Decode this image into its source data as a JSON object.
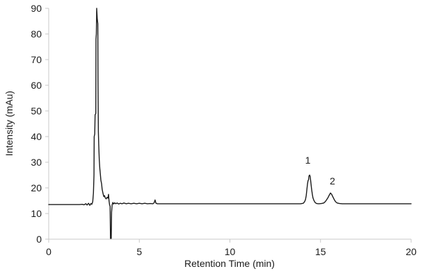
{
  "chart_data": {
    "type": "line",
    "title": "",
    "xlabel": "Retention Time (min)",
    "ylabel": "Intensity (mAu)",
    "xlim": [
      0,
      20
    ],
    "ylim": [
      0,
      90
    ],
    "xticks": [
      0,
      5,
      10,
      15,
      20
    ],
    "yticks": [
      0,
      10,
      20,
      30,
      40,
      50,
      60,
      70,
      80,
      90
    ],
    "grid": false,
    "legend": false,
    "colors": {
      "trace": "#1a1a1a",
      "axis": "#c8c8c8",
      "text": "#1a1a1a"
    },
    "baseline_mau": 13.5,
    "peaks": [
      {
        "label": "1",
        "retention_time_min": 14.4,
        "apex_mau": 25
      },
      {
        "label": "2",
        "retention_time_min": 15.6,
        "apex_mau": 18
      }
    ],
    "annotations": [
      {
        "label": "1",
        "t": 14.3,
        "v": 30.8
      },
      {
        "label": "2",
        "t": 15.66,
        "v": 22.7
      }
    ],
    "series": [
      {
        "name": "chromatogram",
        "points": [
          [
            0,
            13.5
          ],
          [
            0.6,
            13.5
          ],
          [
            1.2,
            13.5
          ],
          [
            1.7,
            13.5
          ],
          [
            1.85,
            13.6
          ],
          [
            1.95,
            13.4
          ],
          [
            2.05,
            13.8
          ],
          [
            2.12,
            13.3
          ],
          [
            2.2,
            14.0
          ],
          [
            2.27,
            13.2
          ],
          [
            2.33,
            13.9
          ],
          [
            2.38,
            13.6
          ],
          [
            2.43,
            14.6
          ],
          [
            2.47,
            18.0
          ],
          [
            2.5,
            25.0
          ],
          [
            2.51,
            40.0
          ],
          [
            2.54,
            41.0
          ],
          [
            2.56,
            48.5
          ],
          [
            2.6,
            49.0
          ],
          [
            2.61,
            78.0
          ],
          [
            2.63,
            80.0
          ],
          [
            2.65,
            90.0
          ],
          [
            2.68,
            86.0
          ],
          [
            2.71,
            84.0
          ],
          [
            2.72,
            62.0
          ],
          [
            2.74,
            42.0
          ],
          [
            2.76,
            37.0
          ],
          [
            2.79,
            31.0
          ],
          [
            2.82,
            27.5
          ],
          [
            2.85,
            25.5
          ],
          [
            2.88,
            23.0
          ],
          [
            2.92,
            21.5
          ],
          [
            2.95,
            19.5
          ],
          [
            3.0,
            17.8
          ],
          [
            3.04,
            16.6
          ],
          [
            3.08,
            17.0
          ],
          [
            3.12,
            16.1
          ],
          [
            3.17,
            15.7
          ],
          [
            3.22,
            16.3
          ],
          [
            3.27,
            16.0
          ],
          [
            3.3,
            17.5
          ],
          [
            3.33,
            15.0
          ],
          [
            3.36,
            13.4
          ],
          [
            3.39,
            12.8
          ],
          [
            3.41,
            0.3
          ],
          [
            3.45,
            0.3
          ],
          [
            3.47,
            10.5
          ],
          [
            3.5,
            13.4
          ],
          [
            3.54,
            14.3
          ],
          [
            3.58,
            13.7
          ],
          [
            3.64,
            14.2
          ],
          [
            3.7,
            13.8
          ],
          [
            3.78,
            14.1
          ],
          [
            3.86,
            13.7
          ],
          [
            3.95,
            14.0
          ],
          [
            4.05,
            13.8
          ],
          [
            4.15,
            14.1
          ],
          [
            4.28,
            13.8
          ],
          [
            4.4,
            14.0
          ],
          [
            4.55,
            13.8
          ],
          [
            4.7,
            14.0
          ],
          [
            4.85,
            13.8
          ],
          [
            5.0,
            14.0
          ],
          [
            5.15,
            13.8
          ],
          [
            5.3,
            14.0
          ],
          [
            5.45,
            13.8
          ],
          [
            5.6,
            13.9
          ],
          [
            5.75,
            13.8
          ],
          [
            5.82,
            14.2
          ],
          [
            5.87,
            15.3
          ],
          [
            5.92,
            14.0
          ],
          [
            6.0,
            13.8
          ],
          [
            6.5,
            13.8
          ],
          [
            7.5,
            13.8
          ],
          [
            8.5,
            13.8
          ],
          [
            9.5,
            13.8
          ],
          [
            10.5,
            13.8
          ],
          [
            11.5,
            13.8
          ],
          [
            12.5,
            13.8
          ],
          [
            13.5,
            13.8
          ],
          [
            13.9,
            13.8
          ],
          [
            14.05,
            14.0
          ],
          [
            14.12,
            14.6
          ],
          [
            14.17,
            15.4
          ],
          [
            14.21,
            17.0
          ],
          [
            14.25,
            19.5
          ],
          [
            14.28,
            21.5
          ],
          [
            14.31,
            22.8
          ],
          [
            14.34,
            23.2
          ],
          [
            14.36,
            24.6
          ],
          [
            14.4,
            25.0
          ],
          [
            14.43,
            24.4
          ],
          [
            14.46,
            22.5
          ],
          [
            14.5,
            20.0
          ],
          [
            14.54,
            17.8
          ],
          [
            14.58,
            16.2
          ],
          [
            14.63,
            15.2
          ],
          [
            14.7,
            14.3
          ],
          [
            14.78,
            13.9
          ],
          [
            14.9,
            13.8
          ],
          [
            15.05,
            13.9
          ],
          [
            15.18,
            14.1
          ],
          [
            15.27,
            14.7
          ],
          [
            15.34,
            15.4
          ],
          [
            15.42,
            16.3
          ],
          [
            15.48,
            17.2
          ],
          [
            15.55,
            18.0
          ],
          [
            15.62,
            17.4
          ],
          [
            15.68,
            16.5
          ],
          [
            15.75,
            15.5
          ],
          [
            15.83,
            14.6
          ],
          [
            15.92,
            14.1
          ],
          [
            16.05,
            13.9
          ],
          [
            16.2,
            13.8
          ],
          [
            17,
            13.8
          ],
          [
            18,
            13.8
          ],
          [
            19,
            13.8
          ],
          [
            20,
            13.8
          ]
        ]
      }
    ]
  }
}
